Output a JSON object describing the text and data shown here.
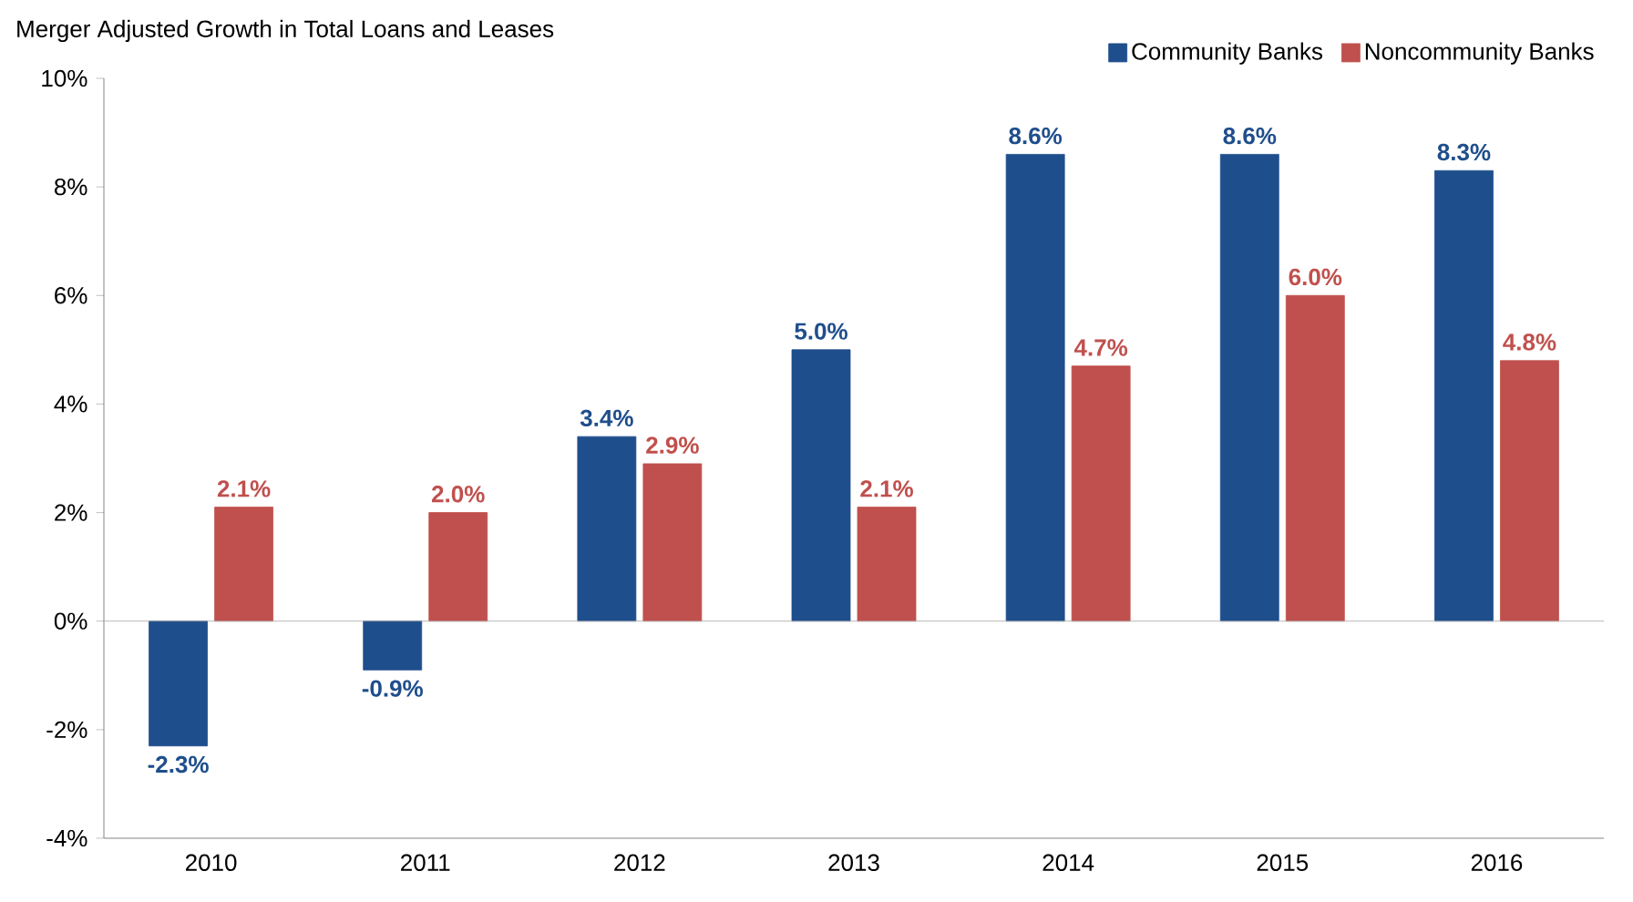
{
  "chart_data": {
    "type": "bar",
    "title": "Merger Adjusted Growth in Total Loans and Leases",
    "categories": [
      "2010",
      "2011",
      "2012",
      "2013",
      "2014",
      "2015",
      "2016"
    ],
    "series": [
      {
        "name": "Community Banks",
        "color": "#1f4e8c",
        "values": [
          -2.3,
          -0.9,
          3.4,
          5.0,
          8.6,
          8.6,
          8.3
        ],
        "value_labels": [
          "-2.3%",
          "-0.9%",
          "3.4%",
          "5.0%",
          "8.6%",
          "8.6%",
          "8.3%"
        ]
      },
      {
        "name": "Noncommunity Banks",
        "color": "#c0504d",
        "values": [
          2.1,
          2.0,
          2.9,
          2.1,
          4.7,
          6.0,
          4.8
        ],
        "value_labels": [
          "2.1%",
          "2.0%",
          "2.9%",
          "2.1%",
          "4.7%",
          "6.0%",
          "4.8%"
        ]
      }
    ],
    "ylim": [
      -4,
      10
    ],
    "yticks": [
      {
        "value": -4,
        "label": "-4%"
      },
      {
        "value": -2,
        "label": "-2%"
      },
      {
        "value": 0,
        "label": "0%"
      },
      {
        "value": 2,
        "label": "2%"
      },
      {
        "value": 4,
        "label": "4%"
      },
      {
        "value": 6,
        "label": "6%"
      },
      {
        "value": 8,
        "label": "8%"
      },
      {
        "value": 10,
        "label": "10%"
      }
    ],
    "ref_lines": [
      {
        "axis": "y",
        "value": 0,
        "color": "#a6a6a6"
      }
    ],
    "grid": false,
    "legend": "top right"
  }
}
